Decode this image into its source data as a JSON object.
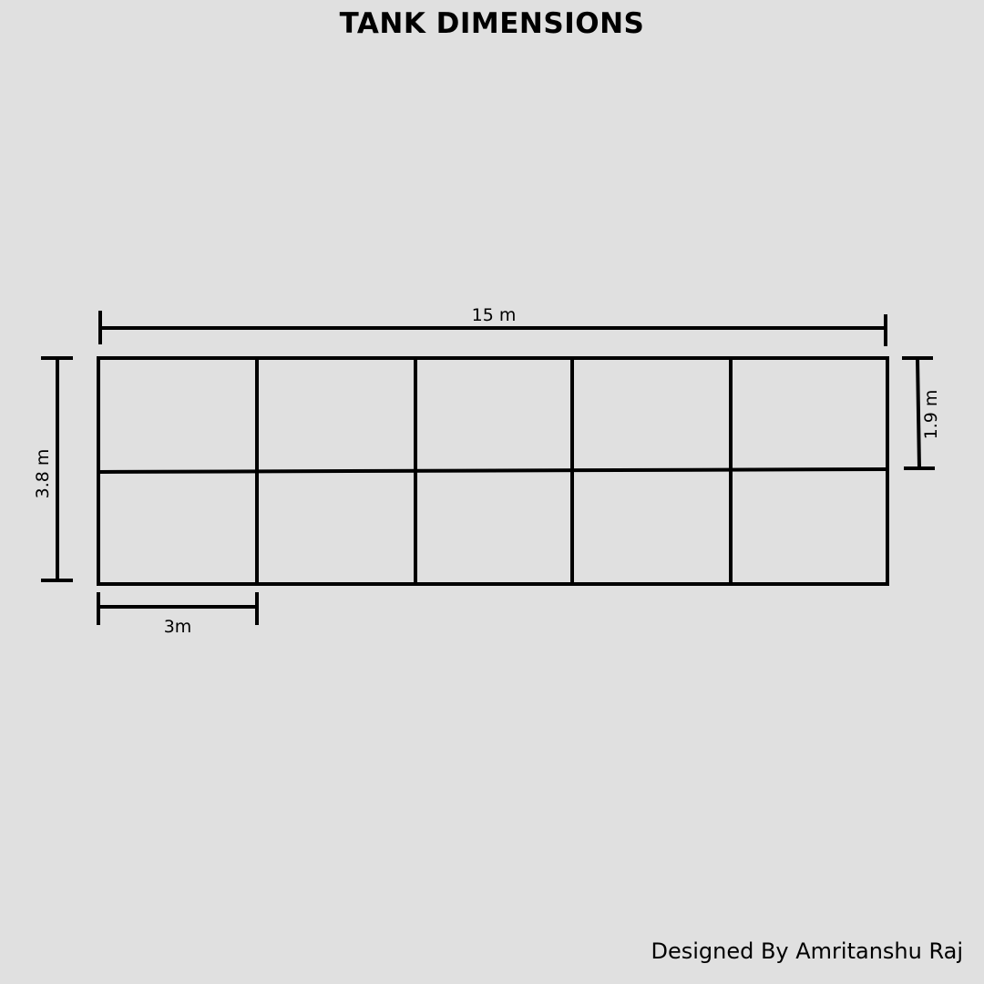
{
  "title": "TANK DIMENSIONS",
  "credit": "Designed By Amritanshu Raj",
  "dimensions": {
    "total_length": "15 m",
    "total_height": "3.8 m",
    "half_height": "1.9 m",
    "cell_width": "3m"
  },
  "grid": {
    "columns": 5,
    "rows": 2
  },
  "colors": {
    "background": "#e0e0e0",
    "line": "#000000"
  }
}
